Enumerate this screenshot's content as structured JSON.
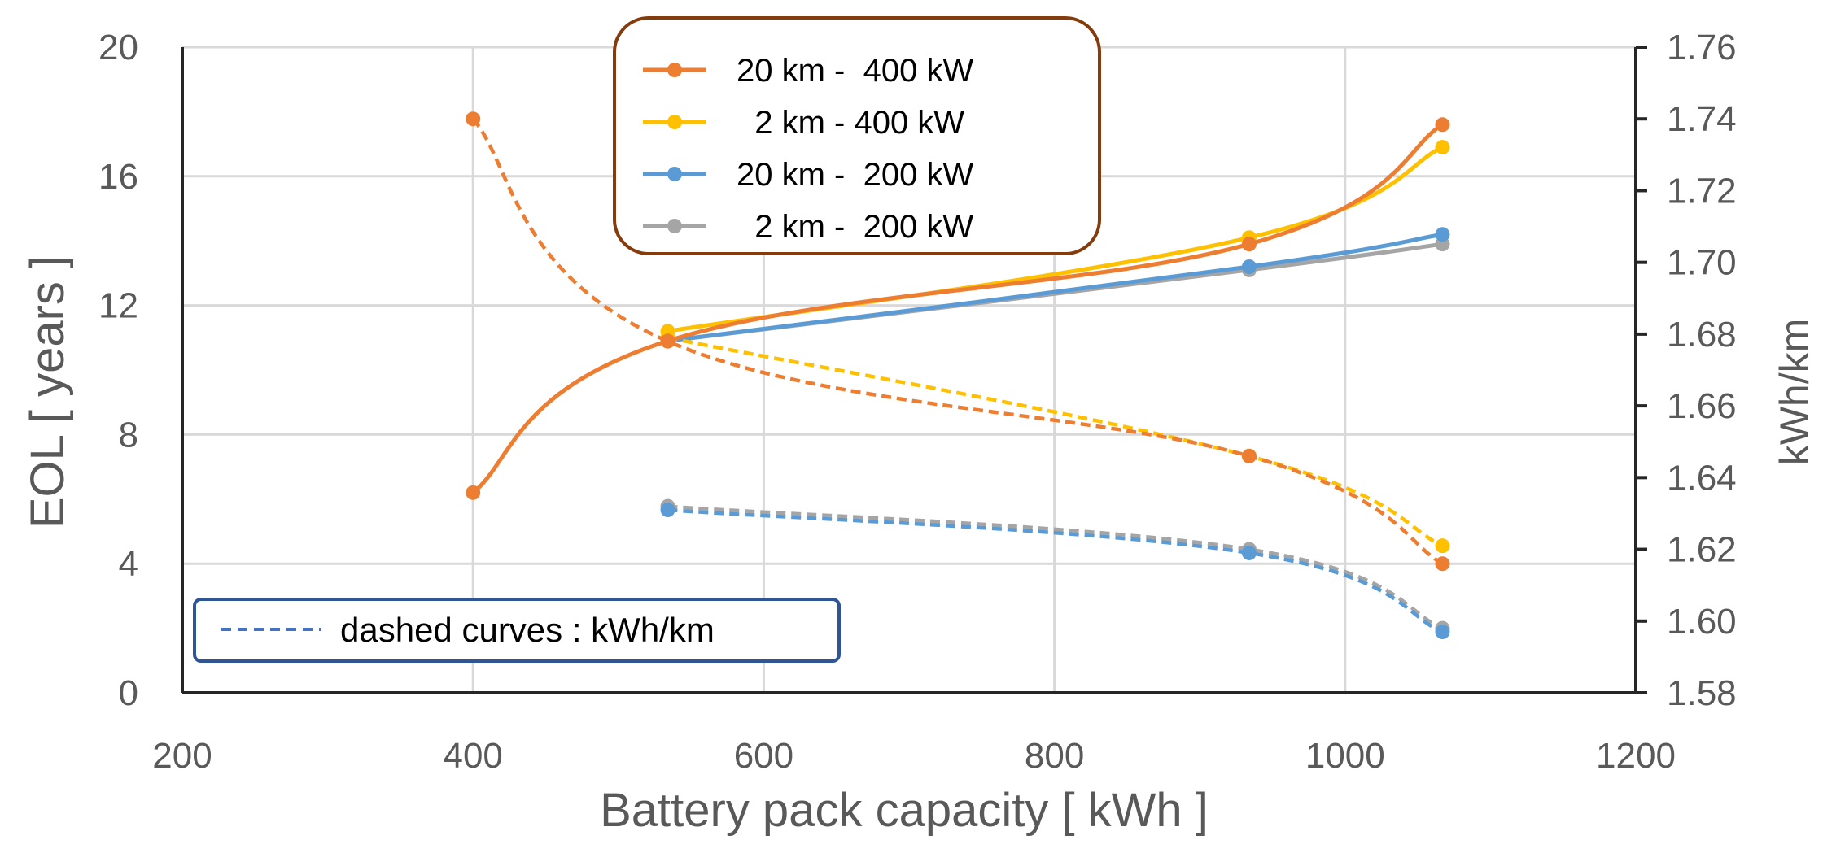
{
  "chart_data": {
    "type": "line",
    "xlabel": "Battery pack capacity   [ kWh ]",
    "ylabel": "EOL   [ years ]",
    "y2label": "kWh/km",
    "xlim": [
      200,
      1200
    ],
    "ylim": [
      0,
      20
    ],
    "y2lim": [
      1.58,
      1.76
    ],
    "x_ticks": [
      "200",
      "400",
      "600",
      "800",
      "1000",
      "1200"
    ],
    "y_ticks": [
      "0",
      "4",
      "8",
      "12",
      "16",
      "20"
    ],
    "y2_ticks": [
      "1.58",
      "1.60",
      "1.62",
      "1.64",
      "1.66",
      "1.68",
      "1.70",
      "1.72",
      "1.74",
      "1.76"
    ],
    "grid": true,
    "legend_position": "top-center",
    "note_text": "dashed curves :  kWh/km",
    "series": [
      {
        "name": "20 km -  400 kW",
        "color": "#ED7D31",
        "eol": {
          "x": [
            400,
            534,
            934,
            1067
          ],
          "y": [
            6.2,
            10.9,
            13.9,
            17.6
          ]
        },
        "kwh_km": {
          "x": [
            400,
            534,
            934,
            1067
          ],
          "y": [
            1.74,
            1.678,
            1.646,
            1.616
          ]
        }
      },
      {
        "name": "  2 km - 400 kW",
        "color": "#FFC000",
        "eol": {
          "x": [
            534,
            934,
            1067
          ],
          "y": [
            11.2,
            14.1,
            16.9
          ]
        },
        "kwh_km": {
          "x": [
            534,
            934,
            1067
          ],
          "y": [
            1.679,
            1.646,
            1.621
          ]
        }
      },
      {
        "name": "20 km -  200 kW",
        "color": "#5B9BD5",
        "eol": {
          "x": [
            534,
            934,
            1067
          ],
          "y": [
            10.9,
            13.2,
            14.2
          ]
        },
        "kwh_km": {
          "x": [
            534,
            934,
            1067
          ],
          "y": [
            1.631,
            1.619,
            1.597
          ]
        }
      },
      {
        "name": "  2 km -  200 kW",
        "color": "#A5A5A5",
        "eol": {
          "x": [
            534,
            934,
            1067
          ],
          "y": [
            10.9,
            13.1,
            13.9
          ]
        },
        "kwh_km": {
          "x": [
            534,
            934,
            1067
          ],
          "y": [
            1.632,
            1.62,
            1.598
          ]
        }
      }
    ]
  }
}
